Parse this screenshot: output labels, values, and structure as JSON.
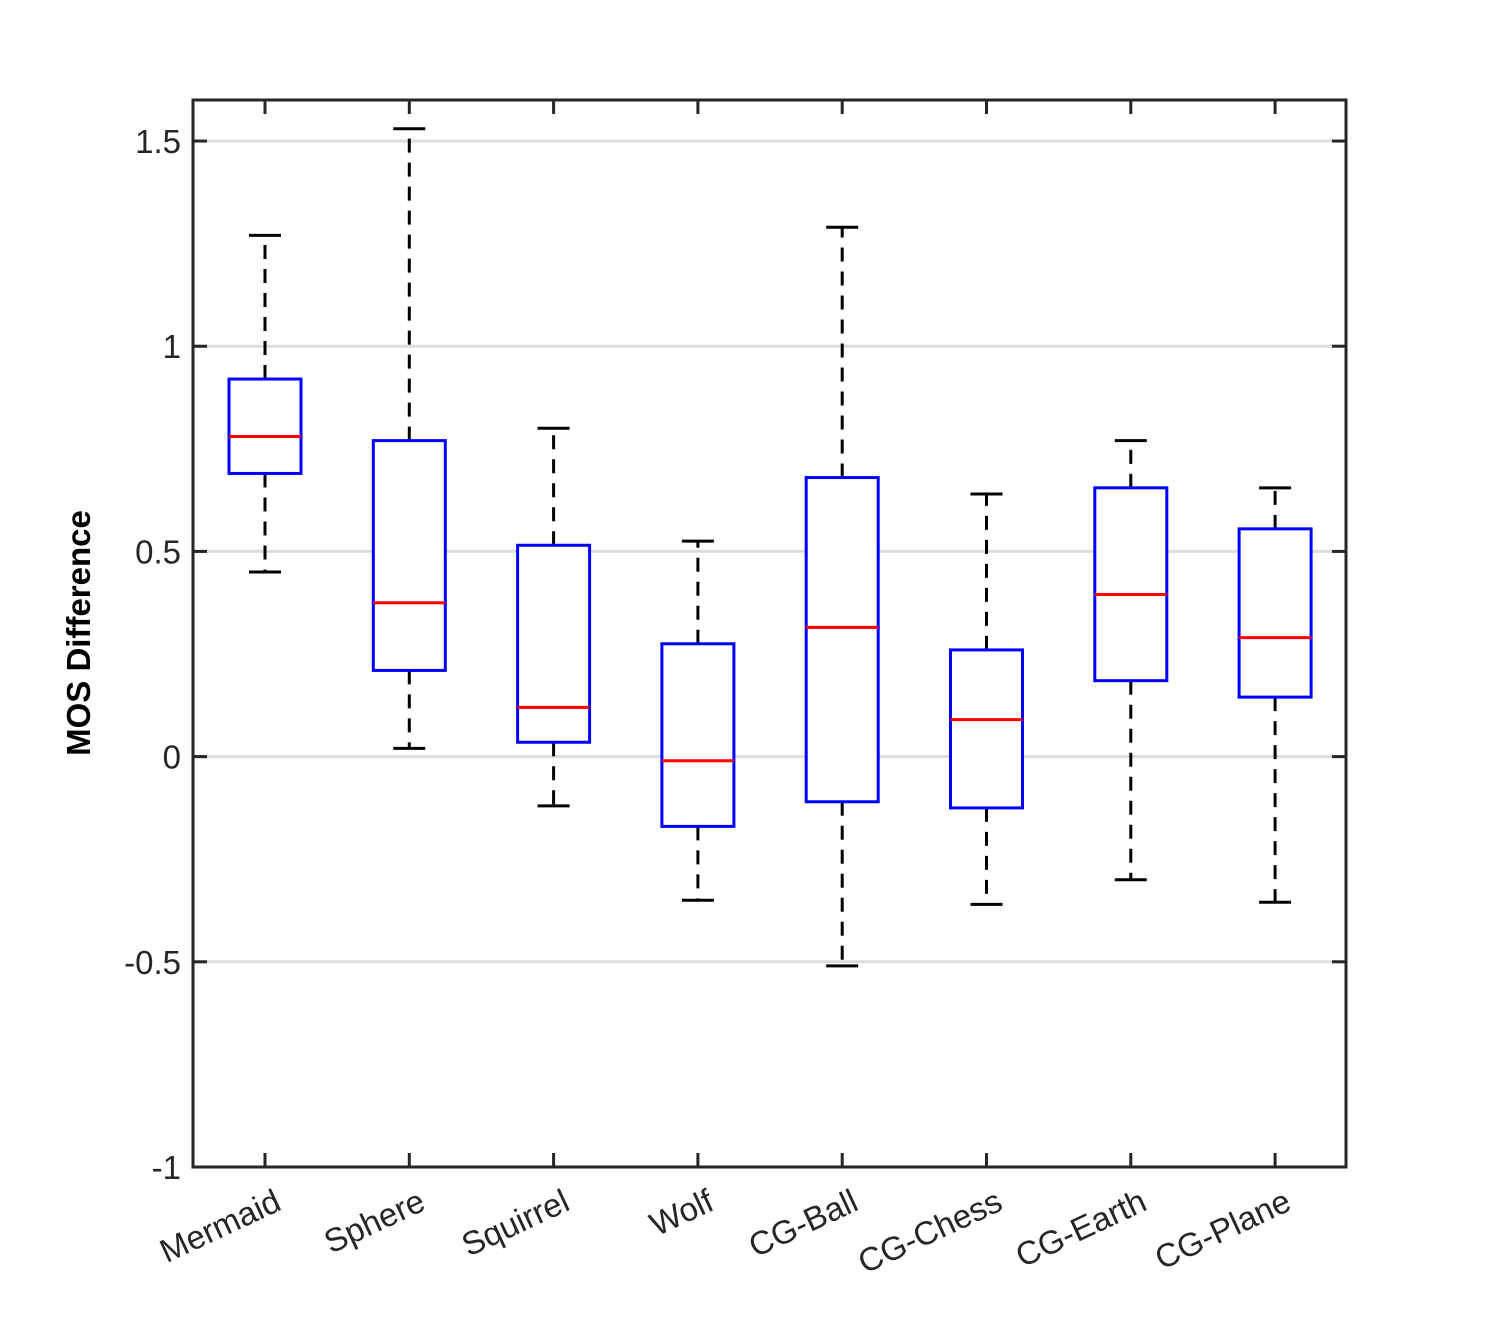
{
  "chart_data": {
    "type": "boxplot",
    "title": "",
    "xlabel": "",
    "ylabel": "MOS Difference",
    "ylim": [
      -1,
      1.6
    ],
    "yticks": [
      -1,
      -0.5,
      0,
      0.5,
      1,
      1.5
    ],
    "ytick_labels": [
      "-1",
      "-0.5",
      "0",
      "0.5",
      "1",
      "1.5"
    ],
    "grid": "horizontal",
    "categories": [
      "Mermaid",
      "Sphere",
      "Squirrel",
      "Wolf",
      "CG-Ball",
      "CG-Chess",
      "CG-Earth",
      "CG-Plane"
    ],
    "boxes": [
      {
        "label": "Mermaid",
        "whisker_low": 0.45,
        "q1": 0.69,
        "median": 0.78,
        "q3": 0.92,
        "whisker_high": 1.27
      },
      {
        "label": "Sphere",
        "whisker_low": 0.02,
        "q1": 0.21,
        "median": 0.375,
        "q3": 0.77,
        "whisker_high": 1.53
      },
      {
        "label": "Squirrel",
        "whisker_low": -0.12,
        "q1": 0.035,
        "median": 0.12,
        "q3": 0.515,
        "whisker_high": 0.8
      },
      {
        "label": "Wolf",
        "whisker_low": -0.35,
        "q1": -0.17,
        "median": -0.01,
        "q3": 0.275,
        "whisker_high": 0.525
      },
      {
        "label": "CG-Ball",
        "whisker_low": -0.51,
        "q1": -0.11,
        "median": 0.315,
        "q3": 0.68,
        "whisker_high": 1.29
      },
      {
        "label": "CG-Chess",
        "whisker_low": -0.36,
        "q1": -0.125,
        "median": 0.09,
        "q3": 0.26,
        "whisker_high": 0.64
      },
      {
        "label": "CG-Earth",
        "whisker_low": -0.3,
        "q1": 0.185,
        "median": 0.395,
        "q3": 0.655,
        "whisker_high": 0.77
      },
      {
        "label": "CG-Plane",
        "whisker_low": -0.355,
        "q1": 0.145,
        "median": 0.29,
        "q3": 0.555,
        "whisker_high": 0.655
      }
    ],
    "colors": {
      "box": "#0000ff",
      "median": "#ff0000",
      "whisker": "#000000",
      "grid": "#dcdcdc",
      "axis": "#262626"
    }
  }
}
